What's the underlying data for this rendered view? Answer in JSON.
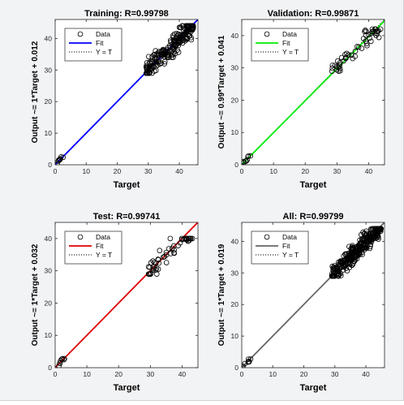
{
  "chart_data": [
    {
      "type": "scatter",
      "title": "Training: R=0.99798",
      "xlabel": "Target",
      "ylabel": "Output ~= 1*Target + 0.012",
      "xlim": [
        0,
        46
      ],
      "ylim": [
        0,
        46
      ],
      "xticks": [
        0,
        10,
        20,
        30,
        40
      ],
      "yticks": [
        0,
        10,
        20,
        30,
        40
      ],
      "fit_color": "#0000ff",
      "fit": {
        "slope": 1,
        "intercept": 0.012
      },
      "legend": {
        "position": "top-left",
        "entries": [
          "Data",
          "Fit",
          "Y = T"
        ]
      },
      "cluster_low": {
        "x_range": [
          0,
          3
        ],
        "y_range": [
          0,
          3
        ]
      },
      "cluster_high": {
        "x_range": [
          29,
          45
        ],
        "y_range": [
          29,
          44
        ]
      }
    },
    {
      "type": "scatter",
      "title": "Validation: R=0.99871",
      "xlabel": "Target",
      "ylabel": "Output ~= 0.99*Target + 0.041",
      "xlim": [
        0,
        45
      ],
      "ylim": [
        0,
        45
      ],
      "xticks": [
        0,
        10,
        20,
        30,
        40
      ],
      "yticks": [
        0,
        10,
        20,
        30,
        40
      ],
      "fit_color": "#00ee00",
      "fit": {
        "slope": 0.99,
        "intercept": 0.041
      },
      "legend": {
        "position": "top-left",
        "entries": [
          "Data",
          "Fit",
          "Y = T"
        ]
      },
      "cluster_low": {
        "x_range": [
          0,
          3
        ],
        "y_range": [
          0,
          3
        ]
      },
      "cluster_high": {
        "x_range": [
          28,
          44
        ],
        "y_range": [
          29,
          42
        ]
      }
    },
    {
      "type": "scatter",
      "title": "Test: R=0.99741",
      "xlabel": "Target",
      "ylabel": "Output ~= 1*Target + 0.032",
      "xlim": [
        0,
        45
      ],
      "ylim": [
        0,
        45
      ],
      "xticks": [
        0,
        10,
        20,
        30,
        40
      ],
      "yticks": [
        0,
        10,
        20,
        30,
        40
      ],
      "fit_color": "#dd0000",
      "fit": {
        "slope": 1,
        "intercept": 0.032
      },
      "legend": {
        "position": "top-left",
        "entries": [
          "Data",
          "Fit",
          "Y = T"
        ]
      },
      "cluster_low": {
        "x_range": [
          0,
          3
        ],
        "y_range": [
          0,
          3
        ]
      },
      "cluster_high": {
        "x_range": [
          29,
          44
        ],
        "y_range": [
          29,
          40
        ]
      }
    },
    {
      "type": "scatter",
      "title": "All: R=0.99799",
      "xlabel": "Target",
      "ylabel": "Output ~= 1*Target + 0.019",
      "xlim": [
        0,
        46
      ],
      "ylim": [
        0,
        46
      ],
      "xticks": [
        0,
        10,
        20,
        30,
        40
      ],
      "yticks": [
        0,
        10,
        20,
        30,
        40
      ],
      "fit_color": "#666666",
      "fit": {
        "slope": 1,
        "intercept": 0.019
      },
      "legend": {
        "position": "top-left",
        "entries": [
          "Data",
          "Fit",
          "Y = T"
        ]
      },
      "cluster_low": {
        "x_range": [
          0,
          3
        ],
        "y_range": [
          0,
          3
        ]
      },
      "cluster_high": {
        "x_range": [
          29,
          45
        ],
        "y_range": [
          29,
          44
        ]
      }
    }
  ]
}
